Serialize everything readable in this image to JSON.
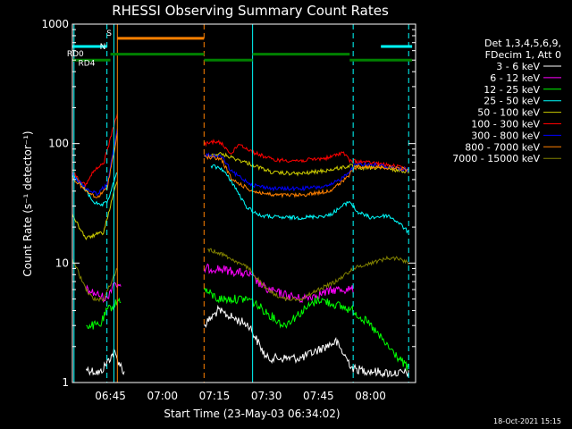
{
  "chart_data": {
    "type": "line",
    "title": "RHESSI Observing Summary Count Rates",
    "xlabel": "Start Time (23-May-03 06:34:02)",
    "ylabel": "Count Rate (s⁻¹ detector⁻¹)",
    "y_scale": "log",
    "ylim": [
      1,
      1000
    ],
    "xlim": [
      "06:34:02",
      "08:13"
    ],
    "grid": false,
    "x_ticks": [
      "06:45",
      "07:00",
      "07:15",
      "07:30",
      "07:45",
      "08:00"
    ],
    "y_ticks": [
      "1",
      "10",
      "100",
      "1000"
    ],
    "legend_header": [
      "Det 1,3,4,5,6,9,",
      "FDecim 1, Att 0"
    ],
    "legend_position": "top-right",
    "timestamp": "18-Oct-2021 15:15",
    "series": [
      {
        "name": "3 - 6 keV",
        "color": "#ffffff",
        "points": [
          [
            "06:38",
            1.3
          ],
          [
            "06:42",
            1.2
          ],
          [
            "06:46",
            1.8
          ],
          [
            "06:49",
            1.2
          ],
          [
            "07:12",
            3
          ],
          [
            "07:16",
            4
          ],
          [
            "07:25",
            3
          ],
          [
            "07:30",
            1.6
          ],
          [
            "07:40",
            1.6
          ],
          [
            "07:50",
            2.2
          ],
          [
            "07:55",
            1.3
          ],
          [
            "08:05",
            1.2
          ],
          [
            "08:11",
            1.2
          ]
        ]
      },
      {
        "name": "6 - 12 keV",
        "color": "#ff00ff",
        "points": [
          [
            "06:38",
            6
          ],
          [
            "06:44",
            5
          ],
          [
            "06:46",
            7
          ],
          [
            "06:48",
            6
          ],
          [
            "07:12",
            9
          ],
          [
            "07:16",
            9
          ],
          [
            "07:25",
            8
          ],
          [
            "07:30",
            6
          ],
          [
            "07:40",
            5
          ],
          [
            "07:50",
            6
          ],
          [
            "07:55",
            6
          ]
        ]
      },
      {
        "name": "12 - 25 keV",
        "color": "#00ff00",
        "points": [
          [
            "06:38",
            3
          ],
          [
            "06:42",
            3
          ],
          [
            "06:44",
            4
          ],
          [
            "06:48",
            5
          ],
          [
            "07:12",
            6
          ],
          [
            "07:16",
            5
          ],
          [
            "07:25",
            5
          ],
          [
            "07:35",
            3
          ],
          [
            "07:45",
            5
          ],
          [
            "07:55",
            4
          ],
          [
            "08:00",
            3
          ],
          [
            "08:05",
            2
          ],
          [
            "08:11",
            1.3
          ]
        ]
      },
      {
        "name": "25 - 50 keV",
        "color": "#00ffff",
        "points": [
          [
            "06:34",
            55
          ],
          [
            "06:37",
            44
          ],
          [
            "06:40",
            33
          ],
          [
            "06:42",
            30
          ],
          [
            "06:44",
            32
          ],
          [
            "06:47",
            58
          ],
          [
            "07:14",
            65
          ],
          [
            "07:17",
            62
          ],
          [
            "07:20",
            48
          ],
          [
            "07:24",
            30
          ],
          [
            "07:28",
            25
          ],
          [
            "07:34",
            24
          ],
          [
            "07:40",
            24
          ],
          [
            "07:48",
            25
          ],
          [
            "07:54",
            33
          ],
          [
            "07:56",
            27
          ],
          [
            "08:00",
            24
          ],
          [
            "08:05",
            25
          ],
          [
            "08:08",
            22
          ],
          [
            "08:11",
            18
          ]
        ]
      },
      {
        "name": "50 - 100 keV",
        "color": "#cccc00",
        "points": [
          [
            "06:34",
            26
          ],
          [
            "06:36",
            20
          ],
          [
            "06:38",
            16
          ],
          [
            "06:40",
            17
          ],
          [
            "06:43",
            18
          ],
          [
            "06:47",
            50
          ],
          [
            "07:13",
            80
          ],
          [
            "07:17",
            82
          ],
          [
            "07:25",
            68
          ],
          [
            "07:32",
            57
          ],
          [
            "07:40",
            56
          ],
          [
            "07:48",
            60
          ],
          [
            "07:54",
            65
          ],
          [
            "07:58",
            62
          ],
          [
            "08:02",
            63
          ],
          [
            "08:08",
            60
          ],
          [
            "08:11",
            58
          ]
        ]
      },
      {
        "name": "100 - 300 keV",
        "color": "#ff0000",
        "points": [
          [
            "06:34",
            58
          ],
          [
            "06:36",
            50
          ],
          [
            "06:38",
            45
          ],
          [
            "06:40",
            58
          ],
          [
            "06:43",
            68
          ],
          [
            "06:47",
            180
          ],
          [
            "07:12",
            98
          ],
          [
            "07:15",
            105
          ],
          [
            "07:17",
            100
          ],
          [
            "07:20",
            82
          ],
          [
            "07:22",
            100
          ],
          [
            "07:26",
            85
          ],
          [
            "07:32",
            73
          ],
          [
            "07:40",
            72
          ],
          [
            "07:48",
            76
          ],
          [
            "07:52",
            85
          ],
          [
            "07:54",
            72
          ],
          [
            "07:58",
            70
          ],
          [
            "08:02",
            68
          ],
          [
            "08:08",
            64
          ],
          [
            "08:11",
            60
          ]
        ]
      },
      {
        "name": "300 - 800 keV",
        "color": "#0000ff",
        "points": [
          [
            "06:34",
            55
          ],
          [
            "06:38",
            42
          ],
          [
            "06:41",
            38
          ],
          [
            "06:44",
            45
          ],
          [
            "06:47",
            130
          ],
          [
            "07:12",
            80
          ],
          [
            "07:17",
            78
          ],
          [
            "07:20",
            58
          ],
          [
            "07:26",
            45
          ],
          [
            "07:32",
            42
          ],
          [
            "07:40",
            42
          ],
          [
            "07:48",
            44
          ],
          [
            "07:52",
            52
          ],
          [
            "07:56",
            68
          ],
          [
            "08:02",
            66
          ],
          [
            "08:08",
            62
          ],
          [
            "08:11",
            60
          ]
        ]
      },
      {
        "name": "800 - 7000 keV",
        "color": "#ff8000",
        "points": [
          [
            "06:34",
            52
          ],
          [
            "06:38",
            40
          ],
          [
            "06:41",
            35
          ],
          [
            "06:44",
            42
          ],
          [
            "06:47",
            120
          ],
          [
            "07:12",
            78
          ],
          [
            "07:17",
            74
          ],
          [
            "07:20",
            50
          ],
          [
            "07:26",
            40
          ],
          [
            "07:32",
            37
          ],
          [
            "07:40",
            37
          ],
          [
            "07:48",
            40
          ],
          [
            "07:52",
            48
          ],
          [
            "07:56",
            64
          ],
          [
            "08:02",
            64
          ],
          [
            "08:08",
            62
          ],
          [
            "08:11",
            60
          ]
        ]
      },
      {
        "name": "7000 - 15000 keV",
        "color": "#808000",
        "points": [
          [
            "06:34",
            11
          ],
          [
            "06:36",
            8
          ],
          [
            "06:38",
            6
          ],
          [
            "06:40",
            5
          ],
          [
            "06:43",
            5
          ],
          [
            "06:47",
            9
          ],
          [
            "07:13",
            13
          ],
          [
            "07:17",
            12
          ],
          [
            "07:25",
            9
          ],
          [
            "07:30",
            6
          ],
          [
            "07:35",
            5
          ],
          [
            "07:40",
            5
          ],
          [
            "07:45",
            6
          ],
          [
            "07:50",
            7
          ],
          [
            "07:55",
            9
          ],
          [
            "08:00",
            10
          ],
          [
            "08:05",
            11
          ],
          [
            "08:08",
            11
          ],
          [
            "08:11",
            10
          ]
        ]
      }
    ],
    "annotations": {
      "flag_bars": [
        {
          "label": "S",
          "color": "#ff8000",
          "start": "06:47",
          "end": "07:12",
          "level": 760
        },
        {
          "label": "N",
          "color": "#00ffff",
          "start": "06:34",
          "end": "06:44",
          "level": 650
        },
        {
          "label": "",
          "color": "#00ffff",
          "start": "08:03",
          "end": "08:12",
          "level": 650
        },
        {
          "label": "RD0",
          "color": "#008000",
          "start": "06:34",
          "end": "06:45",
          "level": 500
        },
        {
          "label": "RD4",
          "color": "#008000",
          "start": "06:45",
          "end": "07:12",
          "level": 560
        },
        {
          "label": "",
          "color": "#008000",
          "start": "07:12",
          "end": "07:26",
          "level": 500
        },
        {
          "label": "",
          "color": "#008000",
          "start": "07:26",
          "end": "07:54",
          "level": 560
        },
        {
          "label": "",
          "color": "#008000",
          "start": "07:54",
          "end": "08:12",
          "level": 500
        }
      ],
      "vertical_lines": [
        {
          "time": "06:34:30",
          "color": "#00ffff",
          "style": "solid"
        },
        {
          "time": "06:44",
          "color": "#00ffff",
          "style": "dashed"
        },
        {
          "time": "06:46",
          "color": "#00ffff",
          "style": "solid"
        },
        {
          "time": "06:47",
          "color": "#ff8000",
          "style": "solid"
        },
        {
          "time": "07:12",
          "color": "#ff8000",
          "style": "dashed"
        },
        {
          "time": "07:26",
          "color": "#00ffff",
          "style": "solid"
        },
        {
          "time": "07:55",
          "color": "#00ffff",
          "style": "dashed"
        },
        {
          "time": "08:11",
          "color": "#00ffff",
          "style": "dashed"
        }
      ]
    }
  }
}
